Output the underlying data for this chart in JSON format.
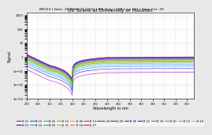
{
  "title": "UV Scans at University of Houston",
  "subtitle": "BR154 | Date: 2008/02/24 [055] | AM-Only | SCR Lev: 101 | Scan Cnt: 20",
  "xlabel": "Wavelength in nm",
  "ylabel": "Signal",
  "xmin": 290,
  "xmax": 363,
  "ymin": 0.001,
  "ymax": 1500,
  "background": "#e8e8e8",
  "plot_bg": "#ffffff",
  "legend_row1": [
    "13:22",
    "13:53",
    "14:16",
    "14:34",
    "14:42",
    "14:58",
    "15:14",
    "15:31",
    "15:46",
    "15:54",
    "16:13",
    "15:27",
    "15:43",
    "15:58"
  ],
  "legend_row2": [
    "17:06",
    "17:22",
    "17:39",
    "17:61",
    "18:10",
    "18:18"
  ],
  "scan_count": 20
}
